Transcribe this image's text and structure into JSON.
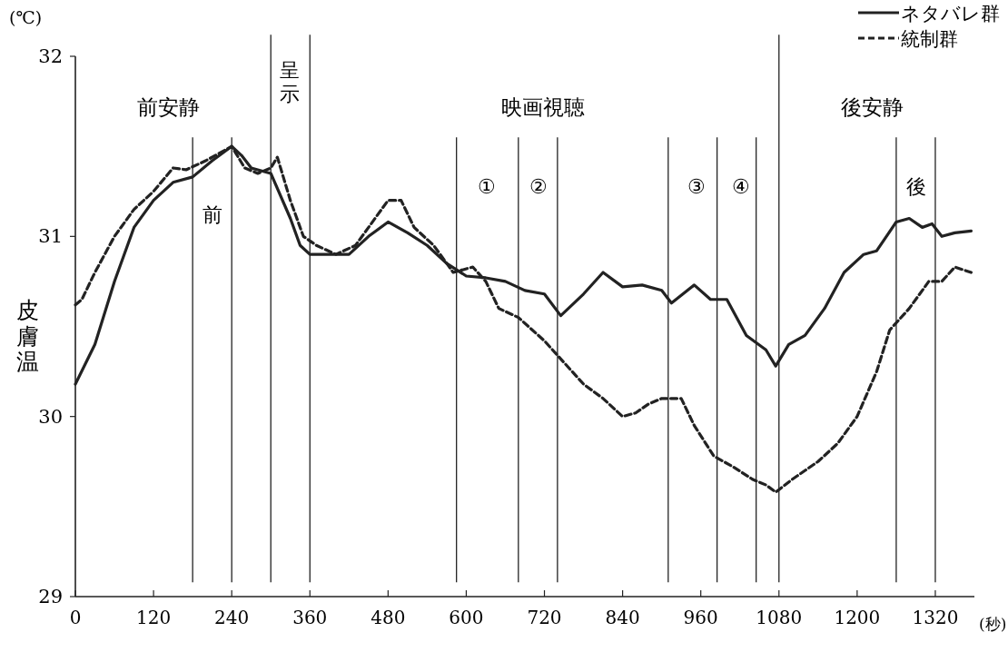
{
  "chart_data": {
    "type": "line",
    "ylabel": "皮膚温",
    "xlabel": "(秒)",
    "annotations": [
      "(℃)",
      "前安静",
      "映画視聴",
      "後安静",
      "前",
      "呈示",
      "①",
      "②",
      "③",
      "④",
      "後"
    ],
    "xlim": [
      0,
      1380
    ],
    "ylim": [
      29,
      32
    ],
    "xticks": [
      0,
      120,
      240,
      360,
      480,
      600,
      720,
      840,
      960,
      1080,
      1200,
      1320
    ],
    "yticks": [
      29,
      30,
      31,
      32
    ],
    "legend": "top right",
    "series": [
      {
        "name": "ネタバレ群",
        "color": "#222222",
        "line_style": "solid",
        "x": [
          0,
          30,
          60,
          90,
          120,
          150,
          180,
          210,
          240,
          255,
          270,
          300,
          330,
          345,
          360,
          390,
          420,
          450,
          480,
          510,
          540,
          570,
          600,
          630,
          660,
          690,
          720,
          745,
          780,
          810,
          840,
          870,
          900,
          915,
          950,
          975,
          1000,
          1030,
          1060,
          1075,
          1095,
          1120,
          1150,
          1180,
          1210,
          1230,
          1260,
          1280,
          1300,
          1315,
          1330,
          1350,
          1375
        ],
        "values": [
          30.18,
          30.4,
          30.75,
          31.05,
          31.2,
          31.3,
          31.33,
          31.42,
          31.5,
          31.45,
          31.38,
          31.35,
          31.1,
          30.95,
          30.9,
          30.9,
          30.9,
          31.0,
          31.08,
          31.02,
          30.95,
          30.85,
          30.78,
          30.77,
          30.75,
          30.7,
          30.68,
          30.56,
          30.68,
          30.8,
          30.72,
          30.73,
          30.7,
          30.63,
          30.73,
          30.65,
          30.65,
          30.45,
          30.37,
          30.28,
          30.4,
          30.45,
          30.6,
          30.8,
          30.9,
          30.92,
          31.08,
          31.1,
          31.05,
          31.07,
          31.0,
          31.02,
          31.03
        ]
      },
      {
        "name": "統制群",
        "color": "#222222",
        "line_style": "dashed",
        "x": [
          0,
          10,
          30,
          60,
          90,
          120,
          150,
          170,
          200,
          240,
          260,
          280,
          300,
          310,
          330,
          350,
          370,
          400,
          430,
          460,
          480,
          500,
          520,
          550,
          580,
          610,
          630,
          650,
          680,
          720,
          750,
          780,
          810,
          840,
          860,
          880,
          900,
          930,
          950,
          980,
          1010,
          1040,
          1060,
          1075,
          1100,
          1140,
          1170,
          1200,
          1230,
          1250,
          1280,
          1310,
          1330,
          1350,
          1375
        ],
        "values": [
          30.62,
          30.65,
          30.8,
          31.0,
          31.15,
          31.25,
          31.38,
          31.37,
          31.42,
          31.5,
          31.38,
          31.35,
          31.38,
          31.44,
          31.2,
          31.0,
          30.95,
          30.9,
          30.95,
          31.1,
          31.2,
          31.2,
          31.05,
          30.95,
          30.8,
          30.83,
          30.75,
          30.6,
          30.55,
          30.42,
          30.3,
          30.18,
          30.1,
          30.0,
          30.02,
          30.07,
          30.1,
          30.1,
          29.95,
          29.78,
          29.72,
          29.65,
          29.62,
          29.58,
          29.65,
          29.75,
          29.85,
          30.0,
          30.25,
          30.48,
          30.6,
          30.75,
          30.75,
          30.83,
          30.8
        ]
      }
    ],
    "ref_lines": [
      {
        "axis": "x",
        "value": 180
      },
      {
        "axis": "x",
        "value": 240
      },
      {
        "axis": "x",
        "value": 300
      },
      {
        "axis": "x",
        "value": 360
      },
      {
        "axis": "x",
        "value": 585
      },
      {
        "axis": "x",
        "value": 680
      },
      {
        "axis": "x",
        "value": 740
      },
      {
        "axis": "x",
        "value": 910
      },
      {
        "axis": "x",
        "value": 985
      },
      {
        "axis": "x",
        "value": 1045
      },
      {
        "axis": "x",
        "value": 1080
      },
      {
        "axis": "x",
        "value": 1260
      },
      {
        "axis": "x",
        "value": 1320
      }
    ]
  }
}
